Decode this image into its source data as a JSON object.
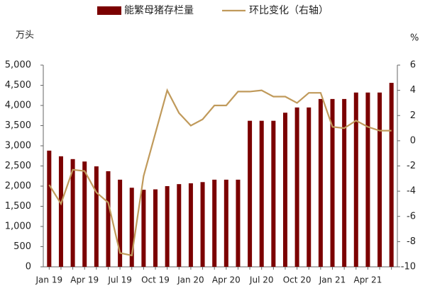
{
  "chart_data": {
    "type": "bar",
    "ylabel": "万头",
    "y2label": "%",
    "categories": [
      "Jan 19",
      null,
      null,
      "Apr 19",
      null,
      null,
      "Jul 19",
      null,
      null,
      "Oct 19",
      null,
      null,
      "Jan 20",
      null,
      null,
      "Apr 20",
      null,
      null,
      "Jul 20",
      null,
      null,
      "Oct 20",
      null,
      null,
      "Jan 21",
      null,
      null,
      "Apr 21",
      null,
      null
    ],
    "series": [
      {
        "name": "能繁母猪存栏量",
        "type": "bar",
        "color": "#7b0000",
        "values": [
          2880,
          2740,
          2670,
          2610,
          2490,
          2370,
          2160,
          1960,
          1910,
          1920,
          2000,
          2050,
          2070,
          2100,
          2160,
          2160,
          2160,
          3620,
          3620,
          3620,
          3820,
          3950,
          3950,
          4160,
          4160,
          4160,
          4320,
          4320,
          4320,
          4560
        ]
      },
      {
        "name": "环比变化（右轴）",
        "type": "line",
        "axis": "y2",
        "color": "#c09a5b",
        "values": [
          -3.5,
          -5.0,
          -2.3,
          -2.4,
          -4.1,
          -4.9,
          -8.9,
          -9.1,
          -2.8,
          0.6,
          4.0,
          2.2,
          1.2,
          1.7,
          2.8,
          2.8,
          3.9,
          3.9,
          4.0,
          3.5,
          3.5,
          3.0,
          3.8,
          3.8,
          1.1,
          1.0,
          1.6,
          1.1,
          0.8,
          0.8
        ]
      }
    ],
    "ylim": [
      0,
      5000
    ],
    "yticks": [
      0,
      500,
      {
        "value": 1000,
        "label": "1,000"
      },
      {
        "value": 1500,
        "label": "1,500"
      },
      {
        "value": 2000,
        "label": "2,000"
      },
      {
        "value": 2500,
        "label": "2,500"
      },
      {
        "value": 3000,
        "label": "3,000"
      },
      {
        "value": 3500,
        "label": "3,500"
      },
      {
        "value": 4000,
        "label": "4,000"
      },
      {
        "value": 4500,
        "label": "4,500"
      },
      {
        "value": 5000,
        "label": "5,000"
      }
    ],
    "y2lim": [
      -10,
      6
    ],
    "y2ticks": [
      -10,
      -8,
      -6,
      -4,
      -2,
      0,
      2,
      4,
      6
    ],
    "grid": false,
    "legend": "top"
  }
}
